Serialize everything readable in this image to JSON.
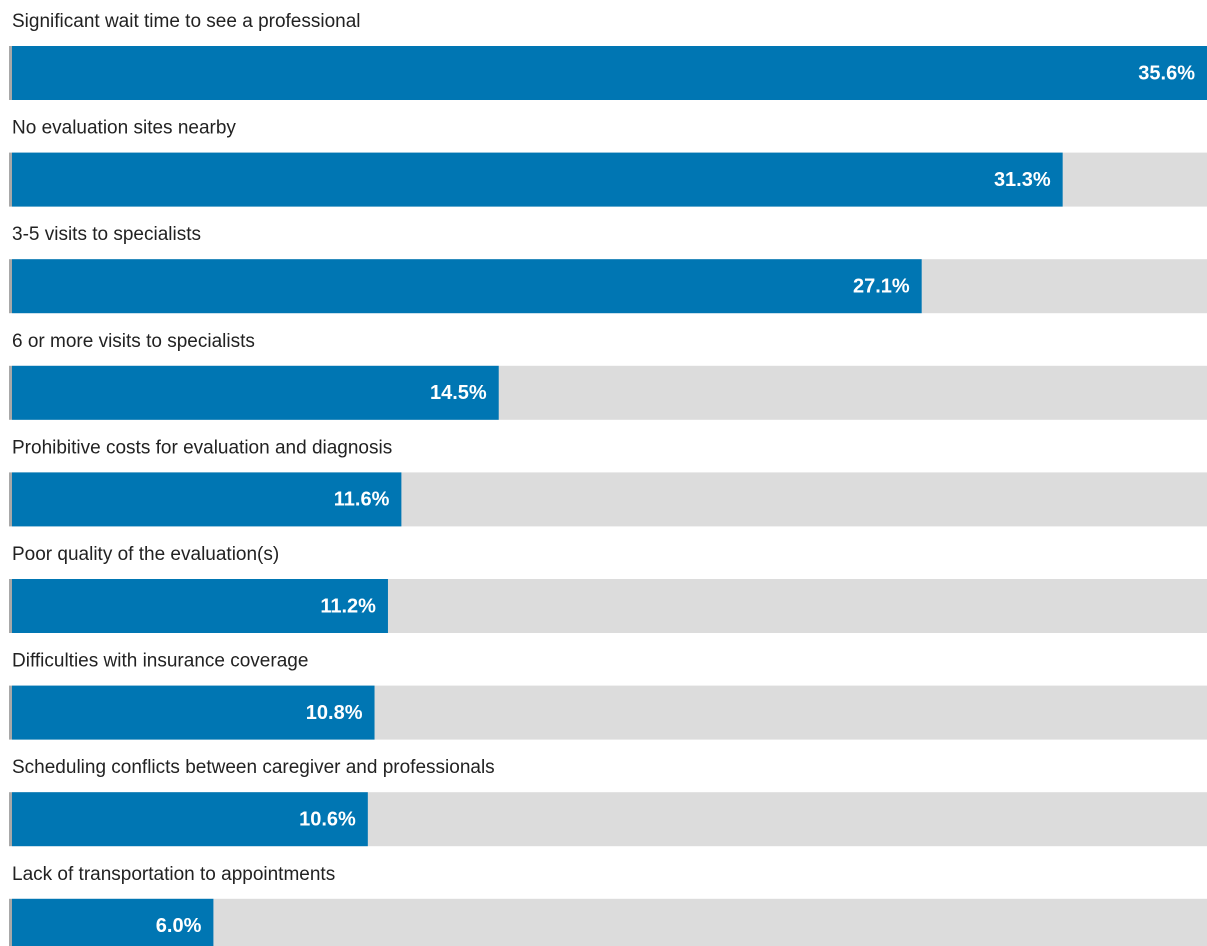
{
  "chart_data": {
    "type": "bar",
    "orientation": "horizontal",
    "categories": [
      "Significant wait time to see a professional",
      "No evaluation sites nearby",
      "3-5 visits to specialists",
      "6 or more visits to specialists",
      "Prohibitive costs for evaluation and diagnosis",
      "Poor quality of the evaluation(s)",
      "Difficulties with insurance coverage",
      "Scheduling conflicts between caregiver and professionals",
      "Lack of transportation to appointments"
    ],
    "values": [
      35.6,
      31.3,
      27.1,
      14.5,
      11.6,
      11.2,
      10.8,
      10.6,
      6.0
    ],
    "value_labels": [
      "35.6%",
      "31.3%",
      "27.1%",
      "14.5%",
      "11.6%",
      "11.2%",
      "10.8%",
      "10.6%",
      "6.0%"
    ],
    "color": "#0076b3",
    "xlim": [
      0,
      35.6
    ]
  }
}
